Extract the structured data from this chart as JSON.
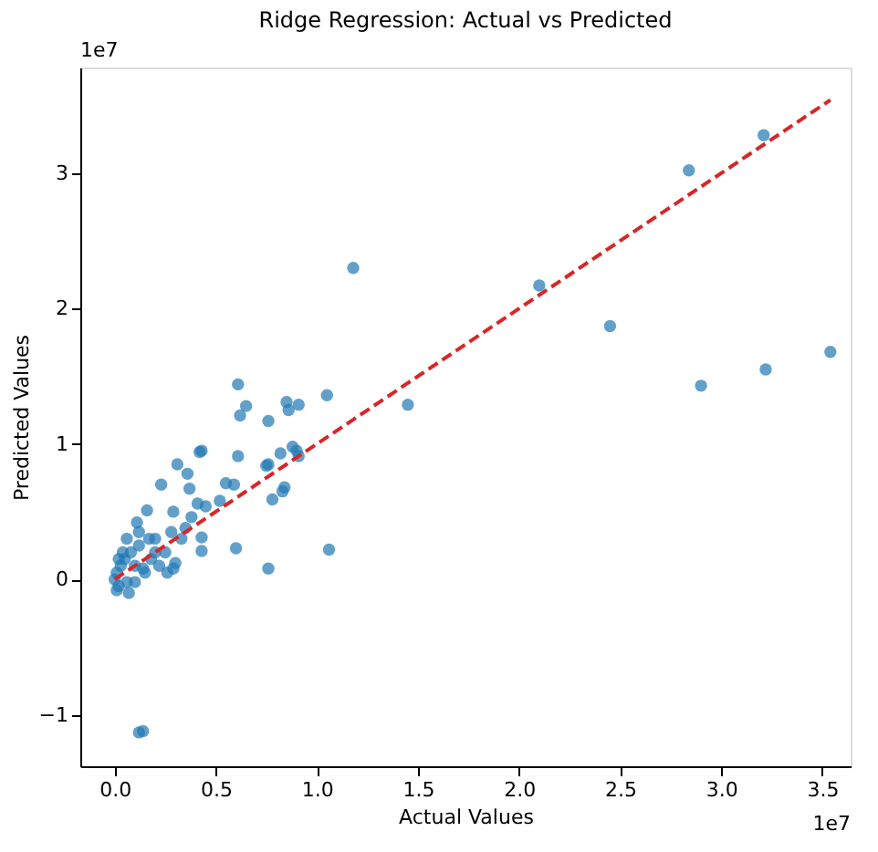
{
  "chart_data": {
    "type": "scatter",
    "title": "Ridge Regression: Actual vs Predicted",
    "xlabel": "Actual Values",
    "ylabel": "Predicted Values",
    "annotations": [
      "1e7",
      "1e7"
    ],
    "xlim": [
      -0.17,
      3.64
    ],
    "ylim": [
      -1.38,
      3.78
    ],
    "xticks": [
      {
        "value": 0,
        "label": "0.0"
      },
      0.5,
      {
        "value": 1,
        "label": "1.0"
      },
      1.5,
      {
        "value": 2,
        "label": "2.0"
      },
      2.5,
      {
        "value": 3,
        "label": "3.0"
      },
      3.5
    ],
    "yticks": [
      -1,
      0,
      1,
      2,
      3
    ],
    "grid": false,
    "marker": "circle",
    "series": [
      {
        "color": "#1f77b4",
        "x": [
          0.61,
          0.62,
          0.65,
          0.76,
          0.85,
          0.86,
          0.91,
          1.05,
          1.45,
          0.31,
          0.36,
          0.42,
          0.43,
          0.61,
          0.23,
          0.37,
          0.55,
          0.59,
          0.75,
          0.76,
          0.82,
          0.88,
          0.9,
          0.91,
          0.84,
          0.83,
          0.78,
          0.16,
          0.11,
          0.29,
          0.41,
          0.52,
          0.45,
          0.38,
          0.43,
          0.43,
          0.6,
          0.76,
          1.06,
          0.12,
          0.14,
          0.0,
          0.01,
          0.02,
          0.03,
          0.05,
          0.06,
          0.08,
          0.1,
          0.12,
          0.15,
          0.18,
          0.2,
          0.22,
          0.25,
          0.28,
          0.3,
          0.33,
          0.06,
          0.04,
          0.07,
          0.1,
          0.14,
          0.17,
          0.26,
          0.29,
          0.35,
          0.01,
          0.02,
          0.12,
          0.2,
          1.18,
          2.1,
          2.45,
          2.84,
          3.21,
          2.9,
          3.22,
          3.54
        ],
        "values": [
          1.44,
          1.21,
          1.28,
          1.17,
          1.31,
          1.25,
          1.29,
          1.36,
          1.29,
          0.85,
          0.78,
          0.94,
          0.95,
          0.91,
          0.7,
          0.67,
          0.71,
          0.7,
          0.84,
          0.85,
          0.93,
          0.98,
          0.95,
          0.91,
          0.68,
          0.65,
          0.59,
          0.51,
          0.42,
          0.5,
          0.56,
          0.58,
          0.54,
          0.46,
          0.31,
          0.21,
          0.23,
          0.08,
          0.22,
          -1.13,
          -1.12,
          0.0,
          0.05,
          -0.05,
          0.1,
          0.15,
          -0.02,
          0.2,
          0.1,
          0.25,
          0.05,
          0.15,
          0.3,
          0.1,
          0.2,
          0.35,
          0.12,
          0.3,
          0.3,
          0.2,
          -0.1,
          -0.02,
          0.08,
          0.3,
          0.05,
          0.08,
          0.38,
          -0.08,
          0.15,
          0.35,
          0.2,
          2.3,
          2.17,
          1.87,
          3.02,
          3.28,
          1.43,
          1.55,
          1.68
        ]
      },
      {
        "type": "line",
        "color": "#d62728",
        "line_style": "dashed",
        "marker": "none",
        "x": [
          0.0,
          3.54
        ],
        "values": [
          0.0,
          3.54
        ]
      }
    ]
  }
}
